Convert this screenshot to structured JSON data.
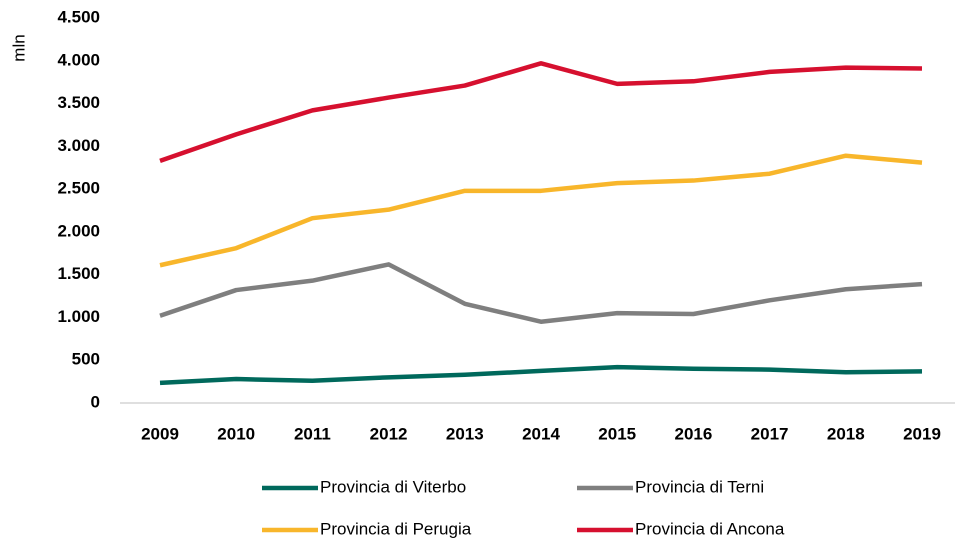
{
  "chart_data": {
    "type": "line",
    "y_label": "mln",
    "categories": [
      "2009",
      "2010",
      "2011",
      "2012",
      "2013",
      "2014",
      "2015",
      "2016",
      "2017",
      "2018",
      "2019"
    ],
    "series": [
      {
        "name": "Provincia di Viterbo",
        "color": "#00695c",
        "values": [
          235,
          280,
          260,
          300,
          330,
          375,
          420,
          400,
          390,
          360,
          370
        ]
      },
      {
        "name": "Provincia di Terni",
        "color": "#7f7f7f",
        "values": [
          1020,
          1320,
          1430,
          1620,
          1160,
          950,
          1050,
          1040,
          1200,
          1330,
          1390
        ]
      },
      {
        "name": "Provincia di Perugia",
        "color": "#f8b62b",
        "values": [
          1610,
          1810,
          2160,
          2260,
          2480,
          2480,
          2570,
          2600,
          2680,
          2890,
          2810
        ]
      },
      {
        "name": "Provincia di Ancona",
        "color": "#d6102f",
        "values": [
          2830,
          3140,
          3420,
          3570,
          3710,
          3970,
          3730,
          3760,
          3870,
          3920,
          3910
        ]
      }
    ],
    "ylim": [
      0,
      4500
    ],
    "yticks": [
      0,
      500,
      {
        "value": 1000,
        "label": "1.000"
      },
      {
        "value": 1500,
        "label": "1.500"
      },
      {
        "value": 2000,
        "label": "2.000"
      },
      {
        "value": 2500,
        "label": "2.500"
      },
      {
        "value": 3000,
        "label": "3.000"
      },
      {
        "value": 3500,
        "label": "3.500"
      },
      {
        "value": 4000,
        "label": "4.000"
      },
      {
        "value": 4500,
        "label": "4.500"
      }
    ],
    "grid": false,
    "legend": "bottom"
  }
}
